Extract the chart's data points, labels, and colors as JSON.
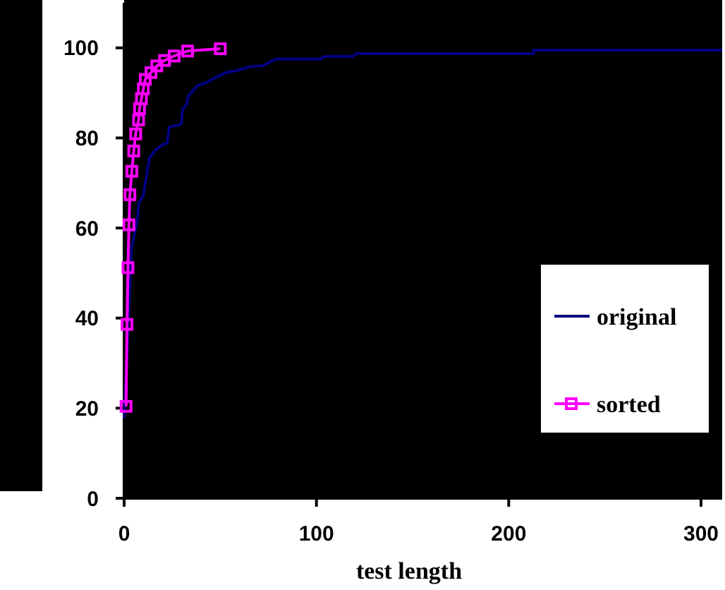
{
  "chart_data": {
    "type": "line",
    "xlabel": "test length",
    "xlim": [
      0,
      311
    ],
    "xticks": [
      0,
      100,
      200,
      300
    ],
    "ylim": [
      0,
      110
    ],
    "yticks": [
      0,
      20,
      40,
      60,
      80,
      100
    ],
    "grid": false,
    "legend": "right",
    "series": [
      {
        "name": "original",
        "color": "#000080",
        "marker": "none",
        "x": [
          0,
          3.9,
          6.9,
          7.6,
          10,
          13.2,
          16.2,
          19.9,
          22.3,
          23.5,
          29.7,
          30.4,
          32.8,
          33.3,
          38.2,
          43.1,
          48,
          52.9,
          59,
          65.2,
          72.5,
          78.7,
          102,
          104.4,
          119,
          120.3,
          213,
          213,
          311
        ],
        "values": [
          17.8,
          55.6,
          61.9,
          65.6,
          67.2,
          75.6,
          77.2,
          78.5,
          78.8,
          82.4,
          83,
          86.3,
          87.7,
          89.3,
          91.6,
          92.4,
          93.5,
          94.5,
          95,
          95.8,
          96.1,
          97.5,
          97.5,
          98.1,
          98.1,
          98.7,
          98.7,
          99.5,
          99.5
        ]
      },
      {
        "name": "sorted",
        "color": "#ff00ff",
        "marker": "square",
        "x": [
          1,
          1.5,
          2,
          2.5,
          3,
          4,
          5,
          6,
          7.5,
          8,
          9,
          10,
          11,
          14,
          17,
          21,
          26,
          33,
          50
        ],
        "values": [
          20.4,
          38.6,
          51.2,
          60.7,
          67.4,
          72.6,
          77.1,
          80.9,
          84,
          86.5,
          88.7,
          90.9,
          93,
          94.5,
          96,
          97.2,
          98.2,
          99.3,
          99.8
        ]
      }
    ]
  }
}
